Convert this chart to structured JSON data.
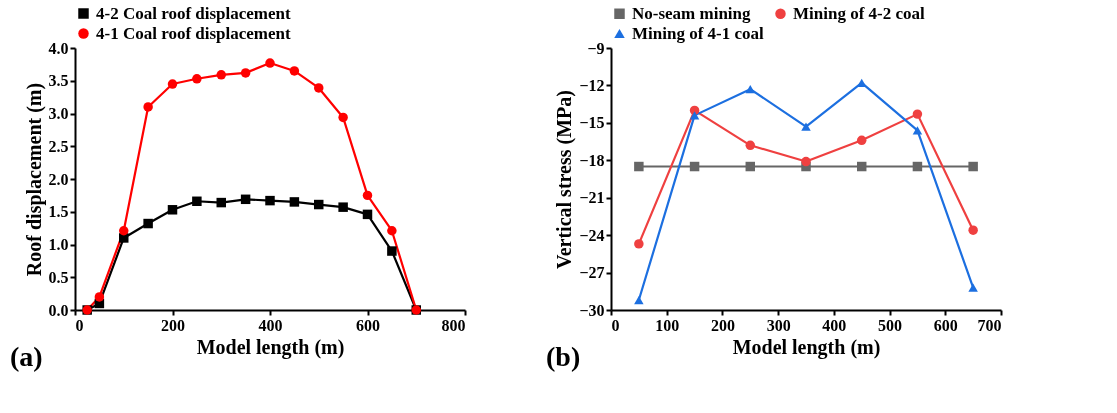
{
  "chart_data": [
    {
      "type": "line",
      "xlabel": "Model length (m)",
      "ylabel": "Roof displacement (m)",
      "xlim": [
        0,
        800
      ],
      "xticks": [
        0,
        200,
        400,
        600,
        800
      ],
      "ylim": [
        0,
        4
      ],
      "yticks": [
        {
          "value": 0,
          "label": "0.0"
        },
        0.5,
        {
          "value": 1,
          "label": "1.0"
        },
        1.5,
        {
          "value": 2,
          "label": "2.0"
        },
        2.5,
        {
          "value": 3,
          "label": "3.0"
        },
        3.5,
        {
          "value": 4,
          "label": "4.0"
        }
      ],
      "grid": false,
      "legend": "top",
      "annotations": [
        "(a)"
      ],
      "series": [
        {
          "name": "4-2 Coal roof displacement",
          "color": "#000000",
          "marker": "square",
          "x": [
            25,
            50,
            100,
            150,
            200,
            250,
            300,
            350,
            400,
            450,
            500,
            550,
            600,
            650,
            700
          ],
          "values": [
            0,
            0.1,
            1.1,
            1.32,
            1.53,
            1.66,
            1.64,
            1.69,
            1.67,
            1.65,
            1.61,
            1.57,
            1.46,
            0.9,
            0
          ]
        },
        {
          "name": "4-1 Coal roof displacement",
          "color": "#ff0000",
          "marker": "circle",
          "x": [
            25,
            50,
            100,
            150,
            200,
            250,
            300,
            350,
            400,
            450,
            500,
            550,
            600,
            650,
            700
          ],
          "values": [
            0,
            0.2,
            1.21,
            3.1,
            3.45,
            3.53,
            3.59,
            3.62,
            3.77,
            3.65,
            3.39,
            2.94,
            1.75,
            1.21,
            0
          ]
        }
      ]
    },
    {
      "type": "line",
      "xlabel": "Model length (m)",
      "ylabel": "Vertical stress (MPa)",
      "xlim": [
        0,
        700
      ],
      "xticks": [
        0,
        100,
        200,
        300,
        400,
        500,
        600,
        700
      ],
      "ylim": [
        -30,
        -9
      ],
      "yticks": [
        -30,
        -27,
        -24,
        -21,
        -18,
        -15,
        -12,
        -9
      ],
      "grid": false,
      "legend": "top",
      "annotations": [
        "(b)"
      ],
      "series": [
        {
          "name": "No-seam mining",
          "color": "#666666",
          "marker": "square",
          "x": [
            50,
            150,
            250,
            350,
            450,
            550,
            650
          ],
          "values": [
            -18.5,
            -18.5,
            -18.5,
            -18.5,
            -18.5,
            -18.5,
            -18.5
          ]
        },
        {
          "name": "Mining of 4-2 coal",
          "color": "#ef4040",
          "marker": "circle",
          "x": [
            50,
            150,
            250,
            350,
            450,
            550,
            650
          ],
          "values": [
            -24.7,
            -14.0,
            -16.8,
            -18.1,
            -16.4,
            -14.3,
            -23.6
          ]
        },
        {
          "name": "Mining of 4-1 coal",
          "color": "#1c6fe0",
          "marker": "triangle",
          "x": [
            50,
            150,
            250,
            350,
            450,
            550,
            650
          ],
          "values": [
            -29.2,
            -14.4,
            -12.3,
            -15.3,
            -11.8,
            -15.6,
            -28.2
          ]
        }
      ]
    }
  ]
}
